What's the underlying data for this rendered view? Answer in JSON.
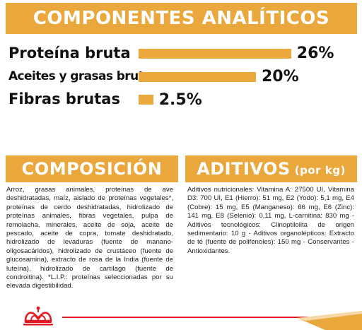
{
  "banners": {
    "analytical": "COMPONENTES ANALÍTICOS",
    "composition": "COMPOSICIÓN",
    "additives": "ADITIVOS",
    "additives_suffix": "(por kg)"
  },
  "nutrients": [
    {
      "label": "Proteína bruta",
      "value": "26%",
      "amount": 26
    },
    {
      "label": "Aceites y grasas brutos",
      "value": "20%",
      "amount": 20
    },
    {
      "label": "Fibras brutas",
      "value": "2.5%",
      "amount": 2.5
    }
  ],
  "composition_text": "Arroz, grasas animales, proteínas de ave deshidratadas, maíz, aislado de proteínas vegetales*, proteínas de cerdo deshidratadas, hidrolizado de proteínas animales, fibras vegetales, pulpa de remolacha, minerales, aceite de soja, aceite de pescado, aceite de copra, tomate deshidratado, hidrolizado de levaduras (fuente de manano-oligosacáridos), hidrolizado de crustáceo (fuente de glucosamina), extracto de rosa de la India (fuente de luteína), hidrolizado de cartílago (fuente de condroitina). *L.I.P.: proteínas seleccionadas por su elevada digestibilidad.",
  "additives_text": "Aditivos nutricionales: Vitamina A: 27500 UI, Vitamina D3: 700 UI, E1 (Hierro): 51 mg, E2 (Yodo): 5,1 mg, E4 (Cobre): 15 mg, E5 (Manganeso): 66 mg, E6 (Zinc): 141 mg, E8 (Selenio): 0,11 mg, L-carnitina: 830 mg - Aditivos tecnológicos: Clinoptilolita de origen sedimentario: 10 g - Aditivos organolépticos: Extracto de té (fuente de polifenoles): 150 mg - Conservantes - Antioxidantes.",
  "colors": {
    "accent": "#e9a73c",
    "brand_red": "#e21b23"
  },
  "icons": {
    "brand": "crown-logo-icon"
  }
}
